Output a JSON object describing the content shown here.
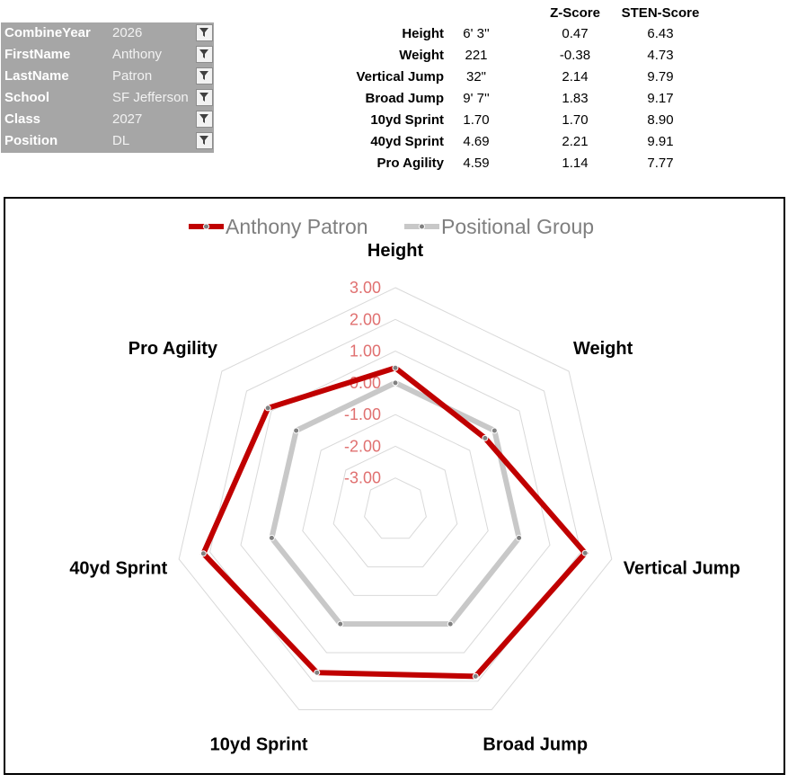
{
  "filters": [
    {
      "label": "CombineYear",
      "value": "2026",
      "icon": "filter-icon"
    },
    {
      "label": "FirstName",
      "value": "Anthony",
      "icon": "filter-icon"
    },
    {
      "label": "LastName",
      "value": "Patron",
      "icon": "filter-icon"
    },
    {
      "label": "School",
      "value": "SF Jefferson",
      "icon": "filter-icon"
    },
    {
      "label": "Class",
      "value": "2027",
      "icon": "filter-icon"
    },
    {
      "label": "Position",
      "value": "DL",
      "icon": "filter-icon"
    }
  ],
  "stats": {
    "headers": {
      "z": "Z-Score",
      "sten": "STEN-Score"
    },
    "rows": [
      {
        "label": "Height",
        "value": "6' 3''",
        "z": "0.47",
        "sten": "6.43"
      },
      {
        "label": "Weight",
        "value": "221",
        "z": "-0.38",
        "sten": "4.73"
      },
      {
        "label": "Vertical Jump",
        "value": "32\"",
        "z": "2.14",
        "sten": "9.79"
      },
      {
        "label": "Broad Jump",
        "value": "9' 7''",
        "z": "1.83",
        "sten": "9.17"
      },
      {
        "label": "10yd Sprint",
        "value": "1.70",
        "z": "1.70",
        "sten": "8.90"
      },
      {
        "label": "40yd Sprint",
        "value": "4.69",
        "z": "2.21",
        "sten": "9.91"
      },
      {
        "label": "Pro Agility",
        "value": "4.59",
        "z": "1.14",
        "sten": "7.77"
      }
    ]
  },
  "chart_data": {
    "type": "radar",
    "categories": [
      "Height",
      "Weight",
      "Vertical Jump",
      "Broad Jump",
      "10yd Sprint",
      "40yd Sprint",
      "Pro Agility"
    ],
    "series": [
      {
        "name": "Anthony Patron",
        "color": "#c00000",
        "values": [
          0.47,
          -0.38,
          2.14,
          1.83,
          1.7,
          2.21,
          1.14
        ]
      },
      {
        "name": "Positional Group",
        "color": "#c8c8c8",
        "values": [
          0,
          0,
          0,
          0,
          0,
          0,
          0
        ]
      }
    ],
    "r_ticks": [
      "3.00",
      "2.00",
      "1.00",
      "0.00",
      "-1.00",
      "-2.00",
      "-3.00"
    ],
    "r_range": [
      -4,
      3
    ],
    "tick_color": "#e07070",
    "grid_color": "#d9d9d9",
    "legend_position": "top"
  }
}
